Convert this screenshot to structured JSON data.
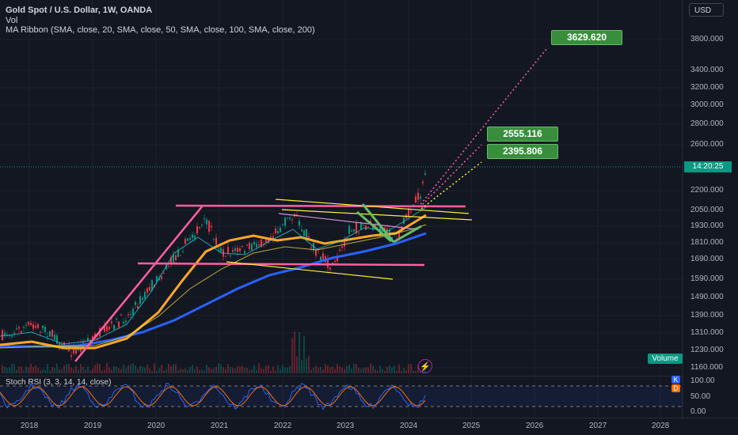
{
  "header": {
    "title": "Gold Spot / U.S. Dollar, 1W, OANDA",
    "vol": "Vol",
    "ma_ribbon": "MA Ribbon (SMA, close, 20, SMA, close, 50, SMA, close, 100, SMA, close, 200)"
  },
  "currency": "USD",
  "price_axis": [
    "3800.000",
    "3400.000",
    "3200.000",
    "3000.000",
    "2800.000",
    "2600.000",
    "2200.000",
    "2050.000",
    "1930.000",
    "1810.000",
    "1690.000",
    "1590.000",
    "1490.000",
    "1390.000",
    "1310.000",
    "1230.000",
    "1160.000"
  ],
  "current_price_countdown": "14:20:25",
  "targets": [
    "3629.620",
    "2555.116",
    "2395.806"
  ],
  "volume_label": "Volume",
  "stoch": {
    "label": "Stoch RSI (3, 3, 14, 14, close)",
    "axis": [
      "100.00",
      "50.00",
      "0.00"
    ],
    "k": "K",
    "d": "D"
  },
  "time_axis": [
    "2018",
    "2019",
    "2020",
    "2021",
    "2022",
    "2023",
    "2024",
    "2025",
    "2026",
    "2027",
    "2028"
  ],
  "colors": {
    "background": "#131722",
    "pink_lines": "#ff5fa2",
    "yellow_lines": "#ffeb3b",
    "ma20": "#26c6da",
    "ma50": "#ffa726",
    "ma200": "#2962ff",
    "target_green": "#388e3c",
    "stoch_k": "#2962ff",
    "stoch_d": "#ff6d00"
  }
}
